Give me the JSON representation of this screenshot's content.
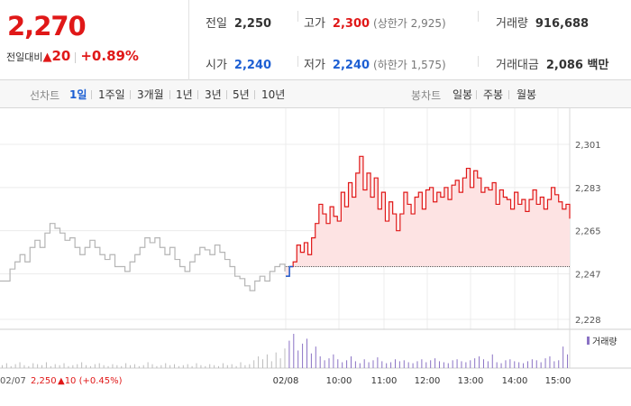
{
  "quote": {
    "price": "2,270",
    "change_label": "전일대비",
    "change_arrow": "▲",
    "change_value": "20",
    "change_pct": "+0.89%",
    "stats": {
      "prev_close_label": "전일",
      "prev_close": "2,250",
      "high_label": "고가",
      "high": "2,300",
      "upper_limit": "(상한가 2,925)",
      "volume_label": "거래량",
      "volume": "916,688",
      "open_label": "시가",
      "open": "2,240",
      "low_label": "저가",
      "low": "2,240",
      "lower_limit": "(하한가 1,575)",
      "trade_value_label": "거래대금",
      "trade_value": "2,086 백만"
    }
  },
  "period_bar": {
    "line_label": "선차트",
    "line_tabs": [
      "1일",
      "1주일",
      "3개월",
      "1년",
      "3년",
      "5년",
      "10년"
    ],
    "active_tab": "1일",
    "candle_label": "봉차트",
    "candle_tabs": [
      "일봉",
      "주봉",
      "월봉"
    ]
  },
  "colors": {
    "up": "#e01818",
    "down": "#1d5fd3",
    "flat": "#b5b5b5",
    "fill": "#fde3e3"
  },
  "chart_data": {
    "type": "line",
    "y_ticks": [
      "2,301",
      "2,283",
      "2,265",
      "2,247",
      "2,228"
    ],
    "ylim": [
      2228,
      2301
    ],
    "x_ticks": [
      "02/08",
      "10:00",
      "11:00",
      "12:00",
      "13:00",
      "14:00",
      "15:00"
    ],
    "prev_day_label": "02/07",
    "prev_close": "2,250",
    "prev_change": "▲10 (+0.45%)",
    "prev_close_value": 2250,
    "legend": "거래량",
    "series": [
      {
        "values": [
          2244,
          2244,
          2249,
          2252,
          2255,
          2252,
          2258,
          2261,
          2258,
          2264,
          2268,
          2266,
          2264,
          2261,
          2262,
          2258,
          2255,
          2258,
          2261,
          2258,
          2255,
          2253,
          2255,
          2250,
          2250,
          2248,
          2252,
          2255,
          2258,
          2262,
          2260,
          2262,
          2258,
          2255,
          2258,
          2253,
          2250,
          2248,
          2252,
          2255,
          2258,
          2257,
          2255,
          2259,
          2256,
          2253,
          2250,
          2246,
          2245,
          2242,
          2240,
          2244,
          2246,
          2244,
          2248,
          2250,
          2251,
          2248
        ]
      },
      {
        "values": [
          2246,
          2250,
          2252,
          2259,
          2256,
          2260,
          2255,
          2262,
          2268,
          2276,
          2272,
          2268,
          2275,
          2271,
          2269,
          2281,
          2275,
          2285,
          2279,
          2289,
          2296,
          2282,
          2289,
          2279,
          2287,
          2274,
          2281,
          2269,
          2277,
          2272,
          2265,
          2272,
          2281,
          2276,
          2272,
          2279,
          2281,
          2274,
          2282,
          2283,
          2277,
          2281,
          2279,
          2283,
          2278,
          2284,
          2286,
          2281,
          2287,
          2291,
          2283,
          2290,
          2287,
          2281,
          2283,
          2282,
          2285,
          2276,
          2282,
          2279,
          2278,
          2274,
          2281,
          2276,
          2278,
          2273,
          2278,
          2282,
          2276,
          2279,
          2274,
          2278,
          2283,
          2280,
          2277,
          2274,
          2276,
          2270
        ]
      }
    ],
    "volume": [
      3,
      5,
      2,
      4,
      6,
      3,
      2,
      5,
      4,
      3,
      6,
      2,
      4,
      3,
      5,
      2,
      3,
      4,
      6,
      3,
      2,
      4,
      5,
      3,
      2,
      4,
      3,
      2,
      5,
      3,
      4,
      2,
      3,
      6,
      4,
      2,
      3,
      5,
      3,
      4,
      2,
      3,
      4,
      2,
      5,
      3,
      2,
      4,
      3,
      2,
      5,
      3,
      4,
      2,
      6,
      3,
      4,
      8,
      12,
      9,
      14,
      7,
      16,
      10,
      20,
      28,
      35,
      18,
      25,
      30,
      15,
      22,
      12,
      8,
      10,
      14,
      9,
      6,
      8,
      12,
      7,
      5,
      9,
      6,
      8,
      11,
      7,
      5,
      6,
      9,
      7,
      8,
      6,
      5,
      7,
      9,
      6,
      8,
      10,
      7,
      6,
      5,
      8,
      9,
      7,
      6,
      8,
      10,
      12,
      9,
      7,
      14,
      6,
      5,
      8,
      9,
      7,
      6,
      5,
      7,
      9,
      8,
      6,
      10,
      12,
      7,
      8,
      22,
      14
    ]
  }
}
